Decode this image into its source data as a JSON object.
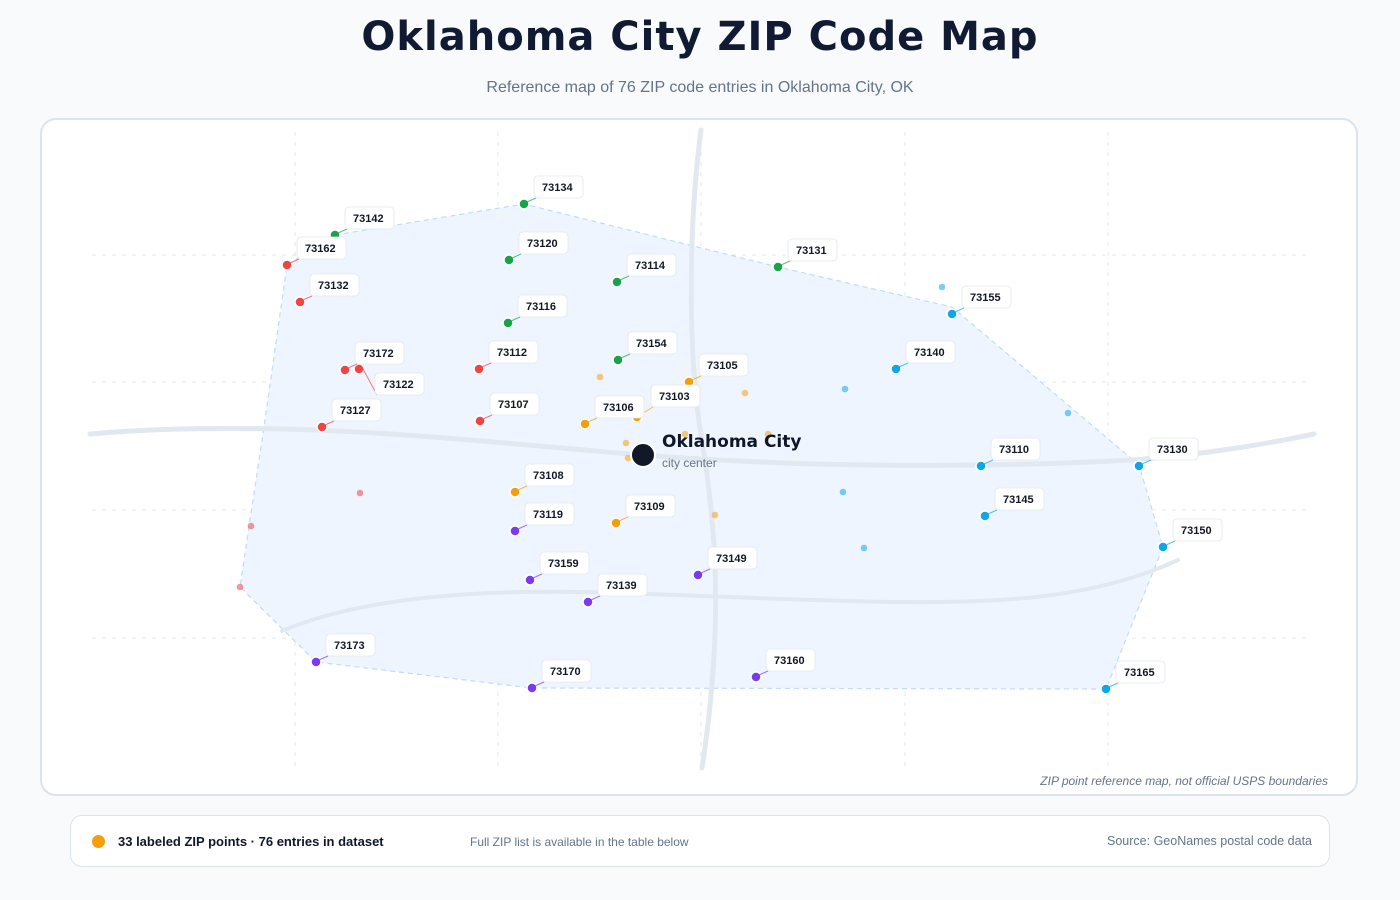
{
  "header": {
    "title": "Oklahoma City ZIP Code Map",
    "subtitle": "Reference map of 76 ZIP code entries in Oklahoma City, OK"
  },
  "map": {
    "note": "ZIP point reference map, not official USPS boundaries",
    "city": {
      "name": "Oklahoma City",
      "sublabel": "city center"
    },
    "colors": {
      "north": "#16a34a",
      "west": "#ef4444",
      "east": "#0ea5e9",
      "central": "#f59e0b",
      "south": "#7c3aed",
      "road": "#e2e8f0",
      "area_fill": "#eff5fe",
      "area_stroke": "#bfdbfe"
    },
    "labeled_points": [
      {
        "zip": "73134",
        "group": "north"
      },
      {
        "zip": "73142",
        "group": "north"
      },
      {
        "zip": "73162",
        "group": "west"
      },
      {
        "zip": "73120",
        "group": "north"
      },
      {
        "zip": "73131",
        "group": "north"
      },
      {
        "zip": "73114",
        "group": "north"
      },
      {
        "zip": "73132",
        "group": "west"
      },
      {
        "zip": "73155",
        "group": "east"
      },
      {
        "zip": "73116",
        "group": "north"
      },
      {
        "zip": "73154",
        "group": "north"
      },
      {
        "zip": "73172",
        "group": "west"
      },
      {
        "zip": "73112",
        "group": "west"
      },
      {
        "zip": "73140",
        "group": "east"
      },
      {
        "zip": "73105",
        "group": "central"
      },
      {
        "zip": "73122",
        "group": "west"
      },
      {
        "zip": "73103",
        "group": "central"
      },
      {
        "zip": "73107",
        "group": "west"
      },
      {
        "zip": "73106",
        "group": "central"
      },
      {
        "zip": "73127",
        "group": "west"
      },
      {
        "zip": "73110",
        "group": "east"
      },
      {
        "zip": "73130",
        "group": "east"
      },
      {
        "zip": "73108",
        "group": "central"
      },
      {
        "zip": "73145",
        "group": "east"
      },
      {
        "zip": "73109",
        "group": "central"
      },
      {
        "zip": "73119",
        "group": "south"
      },
      {
        "zip": "73150",
        "group": "east"
      },
      {
        "zip": "73149",
        "group": "south"
      },
      {
        "zip": "73159",
        "group": "south"
      },
      {
        "zip": "73139",
        "group": "south"
      },
      {
        "zip": "73173",
        "group": "south"
      },
      {
        "zip": "73160",
        "group": "south"
      },
      {
        "zip": "73170",
        "group": "south"
      },
      {
        "zip": "73165",
        "group": "east"
      }
    ],
    "unlabeled_points": [
      {
        "group": "east"
      },
      {
        "group": "east"
      },
      {
        "group": "east"
      },
      {
        "group": "east"
      },
      {
        "group": "east"
      },
      {
        "group": "central"
      },
      {
        "group": "central"
      },
      {
        "group": "central"
      },
      {
        "group": "central"
      },
      {
        "group": "central"
      },
      {
        "group": "central"
      },
      {
        "group": "central"
      },
      {
        "group": "west"
      },
      {
        "group": "west"
      },
      {
        "group": "west"
      }
    ]
  },
  "footer": {
    "summary": "33 labeled ZIP points · 76 entries in dataset",
    "hint": "Full ZIP list is available in the table below",
    "source": "Source: GeoNames postal code data",
    "dot_color": "#f59e0b"
  }
}
